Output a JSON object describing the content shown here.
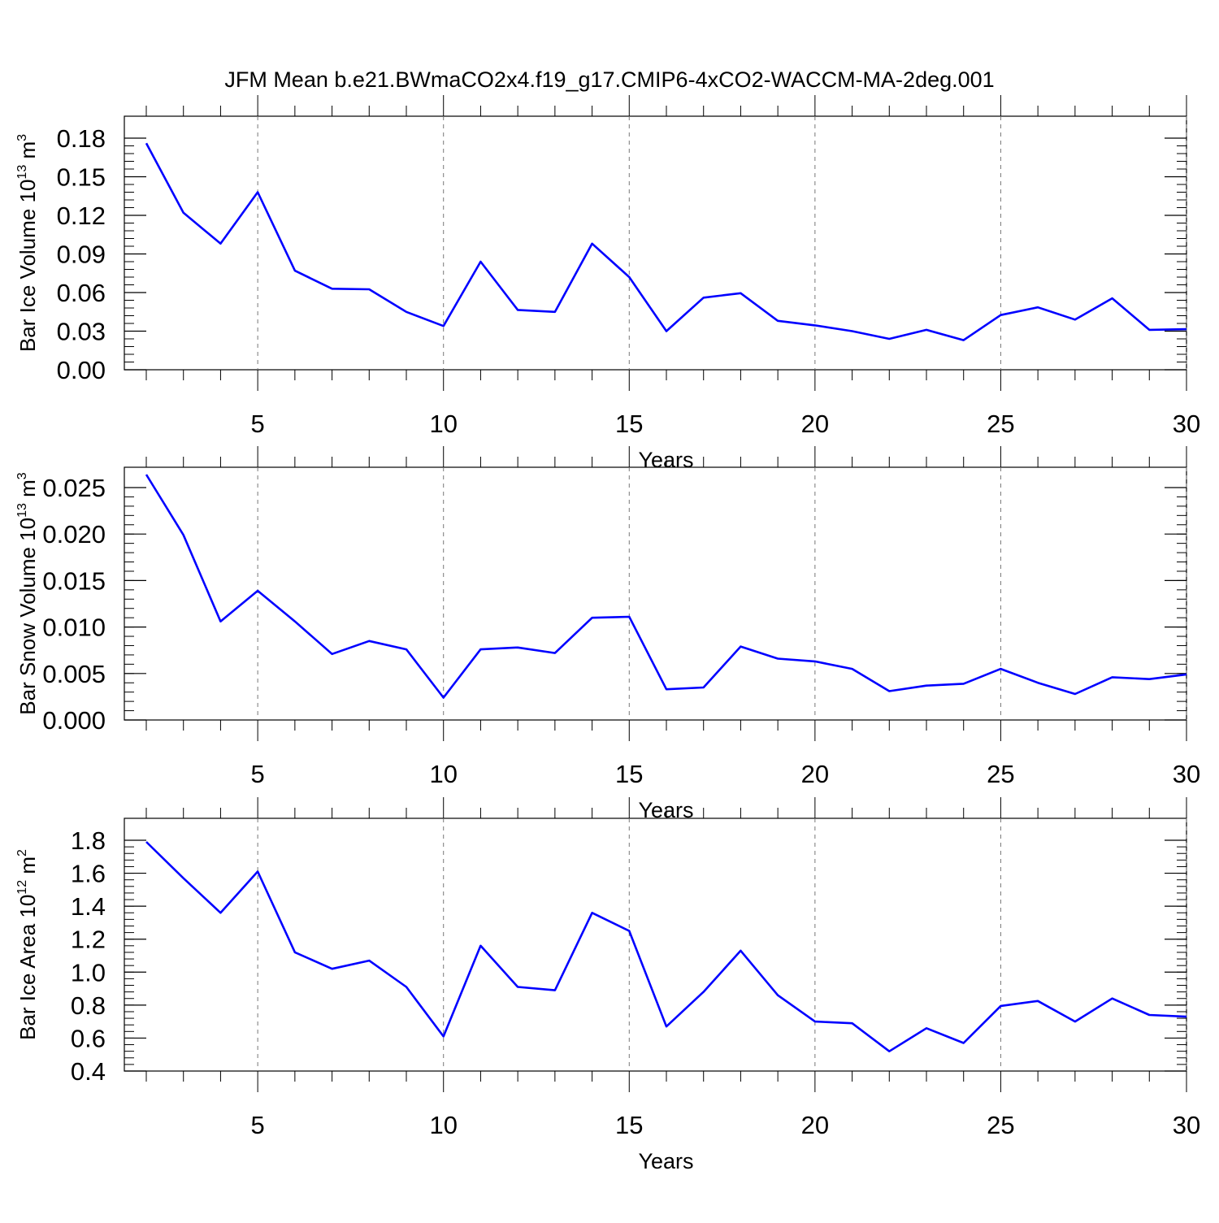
{
  "figure": {
    "title": "JFM Mean b.e21.BWmaCO2x4.f19_g17.CMIP6-4xCO2-WACCM-MA-2deg.001",
    "line_color": "#0000ff"
  },
  "chart_data": [
    {
      "type": "line",
      "ylabel": "Bar Ice Volume 10",
      "ylabel_exp": "13",
      "ylabel_unit": " m",
      "ylabel_unit_exp": "3",
      "xlabel": "Years",
      "xlim": [
        2,
        30
      ],
      "ylim": [
        0,
        0.19
      ],
      "yticks": [
        0,
        0.03,
        0.06,
        0.09,
        0.12,
        0.15,
        0.18
      ],
      "ytick_labels": [
        "0.00",
        "0.03",
        "0.06",
        "0.09",
        "0.12",
        "0.15",
        "0.18"
      ],
      "yminor_step": 0.006,
      "xticks": [
        5,
        10,
        15,
        20,
        25,
        30
      ],
      "xtick_labels": [
        "5",
        "10",
        "15",
        "20",
        "25",
        "30"
      ],
      "grid": "vertical dashed at major x ticks",
      "x": [
        2,
        3,
        4,
        5,
        6,
        7,
        8,
        9,
        10,
        11,
        12,
        13,
        14,
        15,
        16,
        17,
        18,
        19,
        20,
        21,
        22,
        23,
        24,
        25,
        26,
        27,
        28,
        29,
        30
      ],
      "series": [
        {
          "values": [
            0.176,
            0.122,
            0.098,
            0.138,
            0.077,
            0.063,
            0.0625,
            0.045,
            0.034,
            0.084,
            0.0465,
            0.045,
            0.098,
            0.072,
            0.03,
            0.056,
            0.0595,
            0.038,
            0.0345,
            0.03,
            0.024,
            0.031,
            0.023,
            0.0425,
            0.0485,
            0.039,
            0.0555,
            0.031,
            0.0315
          ]
        }
      ]
    },
    {
      "type": "line",
      "ylabel": "Bar Snow Volume 10",
      "ylabel_exp": "13",
      "ylabel_unit": " m",
      "ylabel_unit_exp": "3",
      "xlabel": "Years",
      "xlim": [
        2,
        30
      ],
      "ylim": [
        0,
        0.028
      ],
      "yticks": [
        0,
        0.005,
        0.01,
        0.015,
        0.02,
        0.025
      ],
      "ytick_labels": [
        "0.000",
        "0.005",
        "0.010",
        "0.015",
        "0.020",
        "0.025"
      ],
      "yminor_step": 0.001,
      "xticks": [
        5,
        10,
        15,
        20,
        25,
        30
      ],
      "xtick_labels": [
        "5",
        "10",
        "15",
        "20",
        "25",
        "30"
      ],
      "grid": "vertical dashed at major x ticks",
      "x": [
        2,
        3,
        4,
        5,
        6,
        7,
        8,
        9,
        10,
        11,
        12,
        13,
        14,
        15,
        16,
        17,
        18,
        19,
        20,
        21,
        22,
        23,
        24,
        25,
        26,
        27,
        28,
        29,
        30
      ],
      "series": [
        {
          "values": [
            0.0264,
            0.0199,
            0.0106,
            0.0139,
            0.0106,
            0.0071,
            0.0085,
            0.0076,
            0.0024,
            0.0076,
            0.0078,
            0.0072,
            0.011,
            0.0111,
            0.0033,
            0.0035,
            0.0079,
            0.0066,
            0.0063,
            0.0055,
            0.0031,
            0.0037,
            0.0039,
            0.0055,
            0.004,
            0.0028,
            0.0046,
            0.0044,
            0.0049
          ]
        }
      ]
    },
    {
      "type": "line",
      "ylabel": "Bar Ice Area 10",
      "ylabel_exp": "12",
      "ylabel_unit": " m",
      "ylabel_unit_exp": "2",
      "xlabel": "Years",
      "xlim": [
        2,
        30
      ],
      "ylim": [
        0.4,
        1.8
      ],
      "yticks": [
        0.4,
        0.6,
        0.8,
        1.0,
        1.2,
        1.4,
        1.6,
        1.8
      ],
      "ytick_labels": [
        "0.4",
        "0.6",
        "0.8",
        "1.0",
        "1.2",
        "1.4",
        "1.6",
        "1.8"
      ],
      "yminor_step": 0.04,
      "xticks": [
        5,
        10,
        15,
        20,
        25,
        30
      ],
      "xtick_labels": [
        "5",
        "10",
        "15",
        "20",
        "25",
        "30"
      ],
      "grid": "vertical dashed at major x ticks",
      "x": [
        2,
        3,
        4,
        5,
        6,
        7,
        8,
        9,
        10,
        11,
        12,
        13,
        14,
        15,
        16,
        17,
        18,
        19,
        20,
        21,
        22,
        23,
        24,
        25,
        26,
        27,
        28,
        29,
        30
      ],
      "series": [
        {
          "values": [
            1.79,
            1.57,
            1.36,
            1.61,
            1.12,
            1.02,
            1.07,
            0.91,
            0.61,
            1.16,
            0.91,
            0.89,
            1.36,
            1.25,
            0.67,
            0.88,
            1.13,
            0.86,
            0.7,
            0.69,
            0.52,
            0.66,
            0.57,
            0.795,
            0.825,
            0.7,
            0.84,
            0.74,
            0.73
          ]
        }
      ]
    }
  ]
}
